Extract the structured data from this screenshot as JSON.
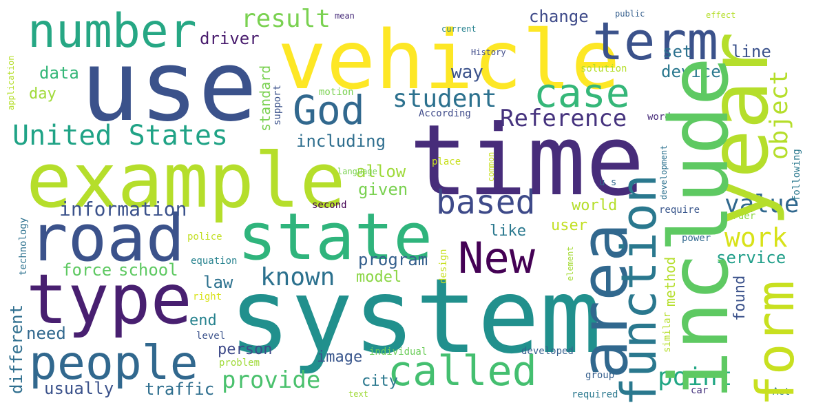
{
  "words": [
    {
      "text": "use",
      "color": "#3b528b"
    },
    {
      "text": "vehicle",
      "color": "#fde725"
    },
    {
      "text": "time",
      "color": "#472c7a"
    },
    {
      "text": "system",
      "color": "#21908d"
    },
    {
      "text": "example",
      "color": "#b5de2b"
    },
    {
      "text": "number",
      "color": "#26a784"
    },
    {
      "text": "term",
      "color": "#3b528b"
    },
    {
      "text": "year",
      "color": "#b5de2b"
    },
    {
      "text": "road",
      "color": "#3b528b"
    },
    {
      "text": "state",
      "color": "#2fb47c"
    },
    {
      "text": "type",
      "color": "#481f70"
    },
    {
      "text": "people",
      "color": "#31688e"
    },
    {
      "text": "include",
      "color": "#5ec962"
    },
    {
      "text": "area",
      "color": "#31688e"
    },
    {
      "text": "function",
      "color": "#2a788e"
    },
    {
      "text": "called",
      "color": "#44bf70"
    },
    {
      "text": "New",
      "color": "#440154"
    },
    {
      "text": "case",
      "color": "#35b779"
    },
    {
      "text": "God",
      "color": "#31688e"
    },
    {
      "text": "form",
      "color": "#c8e020"
    },
    {
      "text": "based",
      "color": "#3e4a89"
    },
    {
      "text": "United States",
      "color": "#20a386"
    },
    {
      "text": "student",
      "color": "#2c718e"
    },
    {
      "text": "Reference",
      "color": "#46337e"
    },
    {
      "text": "object",
      "color": "#b5de2b"
    },
    {
      "text": "result",
      "color": "#7ad151"
    },
    {
      "text": "known",
      "color": "#2c718e"
    },
    {
      "text": "value",
      "color": "#31688e"
    },
    {
      "text": "work",
      "color": "#d8e219"
    },
    {
      "text": "point",
      "color": "#22a785"
    },
    {
      "text": "provide",
      "color": "#4ac16d"
    },
    {
      "text": "including",
      "color": "#2e6e8e"
    },
    {
      "text": "way",
      "color": "#3b528b"
    },
    {
      "text": "change",
      "color": "#3e4a89"
    },
    {
      "text": "set",
      "color": "#2c718e"
    },
    {
      "text": "line",
      "color": "#3b528b"
    },
    {
      "text": "driver",
      "color": "#481b6d"
    },
    {
      "text": "device",
      "color": "#2a788e"
    },
    {
      "text": "data",
      "color": "#35b779"
    },
    {
      "text": "day",
      "color": "#a0da39"
    },
    {
      "text": "standard",
      "color": "#7ad151"
    },
    {
      "text": "allow",
      "color": "#9fda3a"
    },
    {
      "text": "given",
      "color": "#7ad151"
    },
    {
      "text": "information",
      "color": "#3b528b"
    },
    {
      "text": "force",
      "color": "#5ec962"
    },
    {
      "text": "school",
      "color": "#5ec962"
    },
    {
      "text": "program",
      "color": "#35608d"
    },
    {
      "text": "model",
      "color": "#8bd646"
    },
    {
      "text": "world",
      "color": "#b5de2b"
    },
    {
      "text": "like",
      "color": "#2a788e"
    },
    {
      "text": "user",
      "color": "#c2df23"
    },
    {
      "text": "service",
      "color": "#1f9e89"
    },
    {
      "text": "law",
      "color": "#2c718e"
    },
    {
      "text": "method",
      "color": "#b5de2b"
    },
    {
      "text": "found",
      "color": "#3b528b"
    },
    {
      "text": "end",
      "color": "#26828e"
    },
    {
      "text": "need",
      "color": "#31688e"
    },
    {
      "text": "different",
      "color": "#2e6e8e"
    },
    {
      "text": "person",
      "color": "#3e4a89"
    },
    {
      "text": "image",
      "color": "#39568c"
    },
    {
      "text": "city",
      "color": "#2a788e"
    },
    {
      "text": "usually",
      "color": "#3b528b"
    },
    {
      "text": "traffic",
      "color": "#2e6e8e"
    },
    {
      "text": "problem",
      "color": "#a0da39"
    },
    {
      "text": "individual",
      "color": "#6ccd5a"
    },
    {
      "text": "developed",
      "color": "#355f8d"
    },
    {
      "text": "group",
      "color": "#355f8d"
    },
    {
      "text": "similar",
      "color": "#b5de2b"
    },
    {
      "text": "require",
      "color": "#39568c"
    },
    {
      "text": "order",
      "color": "#8fd744"
    },
    {
      "text": "power",
      "color": "#31688e"
    },
    {
      "text": "element",
      "color": "#a5db36"
    },
    {
      "text": "design",
      "color": "#c8e020"
    },
    {
      "text": "second",
      "color": "#440154"
    },
    {
      "text": "police",
      "color": "#c2df23"
    },
    {
      "text": "equation",
      "color": "#26828e"
    },
    {
      "text": "level",
      "color": "#3b528b"
    },
    {
      "text": "technology",
      "color": "#2c718e"
    },
    {
      "text": "right",
      "color": "#d8e219"
    },
    {
      "text": "text",
      "color": "#a0da39"
    },
    {
      "text": "required",
      "color": "#2a788e"
    },
    {
      "text": "car",
      "color": "#46337e"
    },
    {
      "text": "Act",
      "color": "#2a788e"
    },
    {
      "text": "mean",
      "color": "#472c7a"
    },
    {
      "text": "current",
      "color": "#26828e"
    },
    {
      "text": "public",
      "color": "#355f8d"
    },
    {
      "text": "effect",
      "color": "#b5de2b"
    },
    {
      "text": "History",
      "color": "#3e4a89"
    },
    {
      "text": "solution",
      "color": "#b5de2b"
    },
    {
      "text": "motion",
      "color": "#7ad151"
    },
    {
      "text": "support",
      "color": "#3b528b"
    },
    {
      "text": "According",
      "color": "#3e4a89"
    },
    {
      "text": "word",
      "color": "#472c7a"
    },
    {
      "text": "language",
      "color": "#7ad151"
    },
    {
      "text": "common",
      "color": "#c8e020"
    },
    {
      "text": "place",
      "color": "#c8e020"
    },
    {
      "text": "u s",
      "color": "#31688e"
    },
    {
      "text": "development",
      "color": "#2c718e"
    },
    {
      "text": "following",
      "color": "#2a788e"
    },
    {
      "text": "application",
      "color": "#b5de2b"
    }
  ]
}
